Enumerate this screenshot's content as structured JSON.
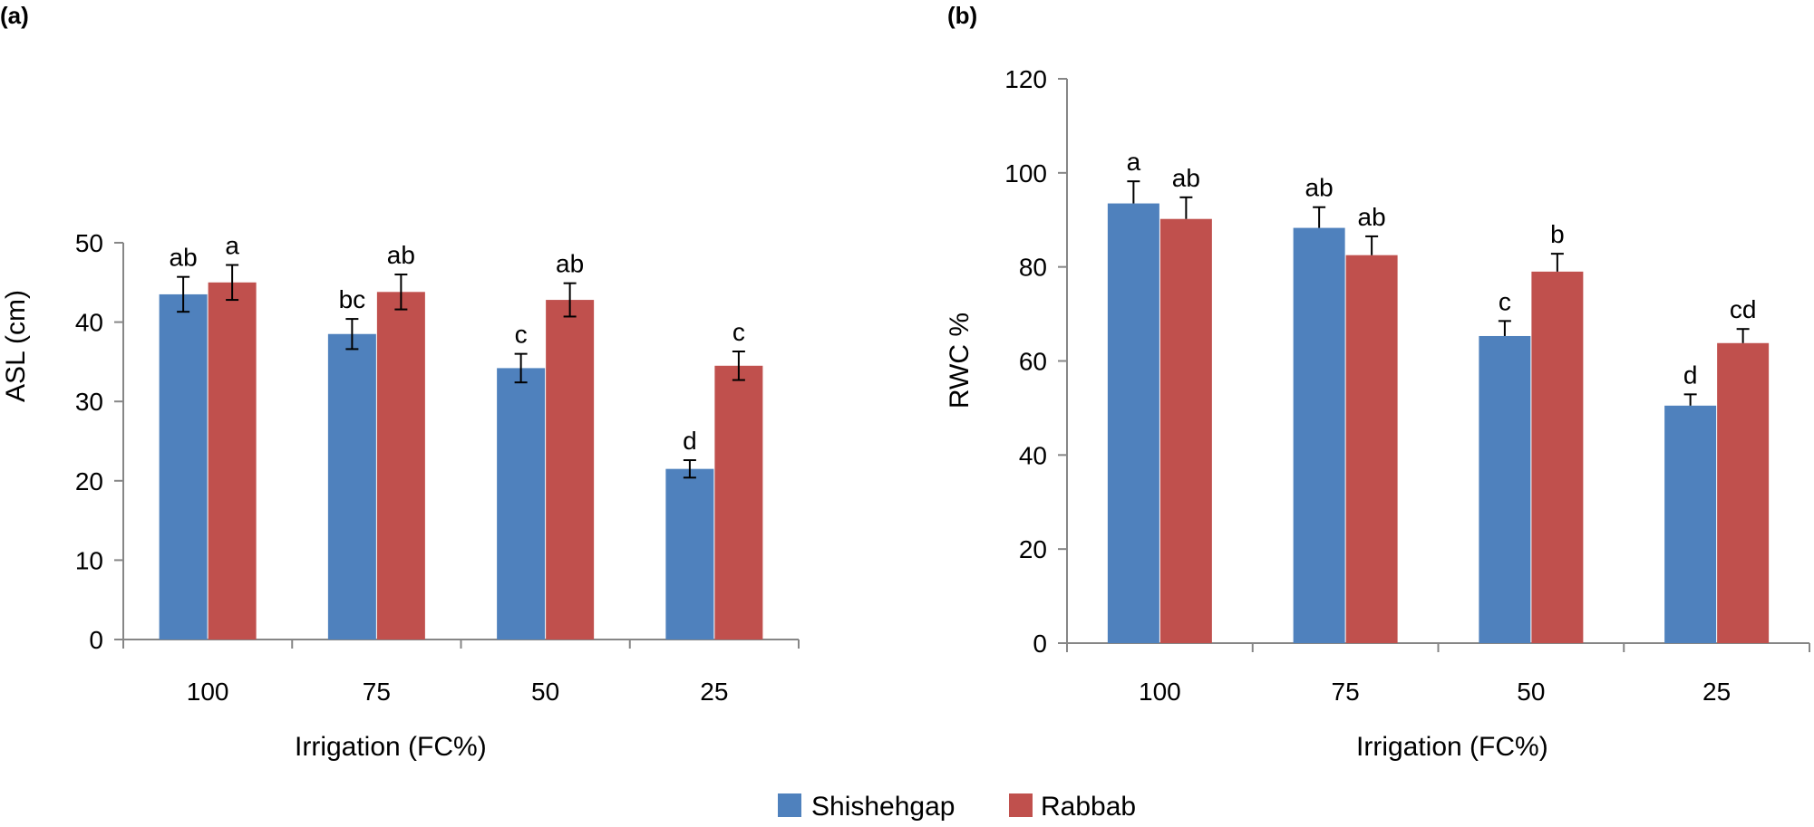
{
  "legend": {
    "items": [
      {
        "label": "Shishehgap",
        "color": "#4F81BD"
      },
      {
        "label": "Rabbab",
        "color": "#C0504D"
      }
    ]
  },
  "chart_data": [
    {
      "type": "bar",
      "panel_label": "(a)",
      "title": "",
      "xlabel": "Irrigation (FC%)",
      "ylabel": "ASL (cm)",
      "categories": [
        "100",
        "75",
        "50",
        "25"
      ],
      "ylim": [
        0,
        50
      ],
      "yticks": [
        0,
        10,
        20,
        30,
        40,
        50
      ],
      "error_bar_style": "both",
      "series": [
        {
          "name": "Shishehgap",
          "color": "#4F81BD",
          "values": [
            43.5,
            38.5,
            34.2,
            21.5
          ],
          "errors": [
            2.2,
            1.9,
            1.8,
            1.1
          ],
          "labels": [
            "ab",
            "bc",
            "c",
            "d"
          ]
        },
        {
          "name": "Rabbab",
          "color": "#C0504D",
          "values": [
            45.0,
            43.8,
            42.8,
            34.5
          ],
          "errors": [
            2.2,
            2.2,
            2.1,
            1.8
          ],
          "labels": [
            "a",
            "ab",
            "ab",
            "c"
          ]
        }
      ]
    },
    {
      "type": "bar",
      "panel_label": "(b)",
      "title": "",
      "xlabel": "Irrigation (FC%)",
      "ylabel": "RWC %",
      "categories": [
        "100",
        "75",
        "50",
        "25"
      ],
      "ylim": [
        0,
        120
      ],
      "yticks": [
        0,
        20,
        40,
        60,
        80,
        100,
        120
      ],
      "error_bar_style": "upper",
      "series": [
        {
          "name": "Shishehgap",
          "color": "#4F81BD",
          "values": [
            93.5,
            88.3,
            65.3,
            50.5
          ],
          "errors": [
            4.7,
            4.4,
            3.2,
            2.4
          ],
          "labels": [
            "a",
            "ab",
            "c",
            "d"
          ]
        },
        {
          "name": "Rabbab",
          "color": "#C0504D",
          "values": [
            90.2,
            82.5,
            79.0,
            63.8
          ],
          "errors": [
            4.6,
            4.0,
            3.8,
            3.0
          ],
          "labels": [
            "ab",
            "ab",
            "b",
            "cd"
          ]
        }
      ]
    }
  ]
}
